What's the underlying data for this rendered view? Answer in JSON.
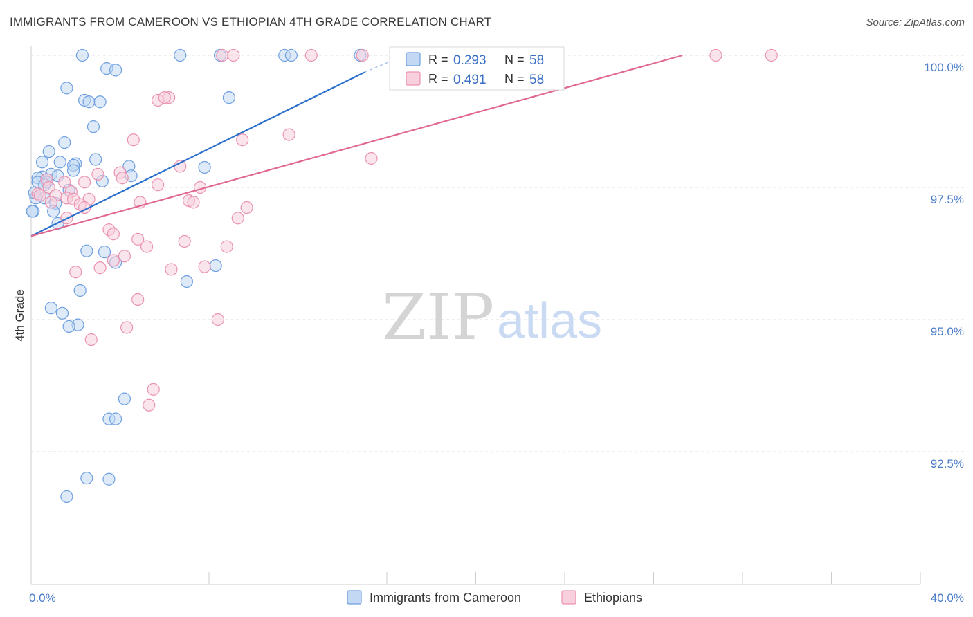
{
  "title": "IMMIGRANTS FROM CAMEROON VS ETHIOPIAN 4TH GRADE CORRELATION CHART",
  "source": "Source: ZipAtlas.com",
  "watermark": {
    "zip": "ZIP",
    "atlas": "atlas"
  },
  "colors": {
    "blue_fill": "#c3d8f3",
    "blue_stroke": "#6e9fe0",
    "blue_line": "#2a6fcc",
    "pink_fill": "#f8cfdc",
    "pink_stroke": "#ea93b0",
    "pink_line": "#e06890",
    "tick_text": "#4a7cc9",
    "grid": "#dddddd"
  },
  "legend": {
    "rows": [
      {
        "r_label": "R =",
        "r_value": "0.293",
        "n_label": "N =",
        "n_value": "58"
      },
      {
        "r_label": "R =",
        "r_value": "0.491",
        "n_label": "N =",
        "n_value": "58"
      }
    ]
  },
  "chart_data": {
    "type": "scatter",
    "title": "IMMIGRANTS FROM CAMEROON VS ETHIOPIAN 4TH GRADE CORRELATION CHART",
    "xlabel": "",
    "ylabel": "4th Grade",
    "xlim": [
      0.0,
      40.0
    ],
    "ylim": [
      90.8,
      100.5
    ],
    "x_tick_labels": [
      {
        "value": 0.0,
        "label": "0.0%"
      },
      {
        "value": 40.0,
        "label": "40.0%"
      }
    ],
    "y_tick_labels": [
      {
        "value": 100.0,
        "label": "100.0%"
      },
      {
        "value": 97.5,
        "label": "97.5%"
      },
      {
        "value": 95.0,
        "label": "95.0%"
      },
      {
        "value": 92.5,
        "label": "92.5%"
      }
    ],
    "grid": true,
    "legend_position": "top-center",
    "series": [
      {
        "name": "Immigrants from Cameroon",
        "color": "#6e9fe0",
        "points": [
          [
            2.3,
            100.0
          ],
          [
            6.7,
            100.0
          ],
          [
            8.5,
            100.0
          ],
          [
            11.4,
            100.0
          ],
          [
            11.7,
            100.0
          ],
          [
            14.8,
            100.0
          ],
          [
            3.4,
            99.75
          ],
          [
            3.8,
            99.72
          ],
          [
            1.6,
            99.38
          ],
          [
            2.4,
            99.15
          ],
          [
            2.6,
            99.12
          ],
          [
            3.1,
            99.12
          ],
          [
            8.9,
            99.2
          ],
          [
            2.8,
            98.65
          ],
          [
            1.5,
            98.35
          ],
          [
            0.8,
            98.18
          ],
          [
            0.5,
            97.98
          ],
          [
            1.3,
            97.98
          ],
          [
            2.0,
            97.95
          ],
          [
            1.9,
            97.92
          ],
          [
            2.9,
            98.03
          ],
          [
            4.4,
            97.9
          ],
          [
            7.8,
            97.88
          ],
          [
            0.9,
            97.75
          ],
          [
            1.9,
            97.82
          ],
          [
            0.5,
            97.7
          ],
          [
            0.3,
            97.68
          ],
          [
            0.7,
            97.6
          ],
          [
            1.2,
            97.72
          ],
          [
            3.2,
            97.62
          ],
          [
            4.5,
            97.72
          ],
          [
            0.3,
            97.6
          ],
          [
            0.6,
            97.3
          ],
          [
            0.2,
            97.3
          ],
          [
            1.1,
            97.2
          ],
          [
            0.1,
            97.05
          ],
          [
            1.0,
            97.05
          ],
          [
            1.7,
            97.45
          ],
          [
            1.2,
            96.82
          ],
          [
            2.5,
            96.3
          ],
          [
            3.3,
            96.28
          ],
          [
            3.8,
            96.08
          ],
          [
            7.0,
            95.72
          ],
          [
            8.3,
            96.02
          ],
          [
            2.2,
            95.55
          ],
          [
            0.9,
            95.22
          ],
          [
            1.4,
            95.12
          ],
          [
            2.1,
            94.9
          ],
          [
            1.7,
            94.87
          ],
          [
            4.2,
            93.5
          ],
          [
            3.5,
            93.12
          ],
          [
            3.8,
            93.12
          ],
          [
            2.5,
            92.0
          ],
          [
            3.5,
            91.98
          ],
          [
            1.6,
            91.65
          ],
          [
            0.05,
            97.05
          ],
          [
            0.15,
            97.4
          ],
          [
            0.6,
            97.55
          ]
        ],
        "trend": {
          "x1": 0.0,
          "y1": 96.58,
          "x2": 15.0,
          "y2": 99.68,
          "dash_x2": 16.8,
          "dash_y2": 100.0
        }
      },
      {
        "name": "Ethiopians",
        "color": "#ea93b0",
        "points": [
          [
            8.6,
            100.0
          ],
          [
            9.1,
            100.0
          ],
          [
            12.6,
            100.0
          ],
          [
            14.9,
            100.0
          ],
          [
            20.7,
            100.0
          ],
          [
            30.8,
            100.0
          ],
          [
            33.3,
            100.0
          ],
          [
            6.2,
            99.2
          ],
          [
            5.7,
            99.15
          ],
          [
            6.0,
            99.2
          ],
          [
            4.6,
            98.4
          ],
          [
            9.5,
            98.4
          ],
          [
            11.6,
            98.5
          ],
          [
            15.3,
            98.05
          ],
          [
            1.5,
            97.6
          ],
          [
            3.0,
            97.75
          ],
          [
            4.0,
            97.78
          ],
          [
            4.1,
            97.68
          ],
          [
            5.7,
            97.55
          ],
          [
            6.7,
            97.9
          ],
          [
            7.6,
            97.5
          ],
          [
            0.7,
            97.65
          ],
          [
            0.8,
            97.5
          ],
          [
            0.3,
            97.38
          ],
          [
            0.4,
            97.35
          ],
          [
            1.1,
            97.35
          ],
          [
            1.8,
            97.42
          ],
          [
            2.4,
            97.6
          ],
          [
            1.6,
            97.3
          ],
          [
            2.6,
            97.28
          ],
          [
            1.9,
            97.28
          ],
          [
            4.9,
            97.22
          ],
          [
            7.1,
            97.25
          ],
          [
            7.3,
            97.22
          ],
          [
            9.7,
            97.12
          ],
          [
            0.9,
            97.22
          ],
          [
            2.2,
            97.18
          ],
          [
            2.4,
            97.12
          ],
          [
            1.6,
            96.92
          ],
          [
            3.5,
            96.7
          ],
          [
            3.7,
            96.62
          ],
          [
            4.8,
            96.52
          ],
          [
            5.2,
            96.38
          ],
          [
            6.9,
            96.48
          ],
          [
            9.3,
            96.92
          ],
          [
            8.8,
            96.38
          ],
          [
            4.2,
            96.2
          ],
          [
            3.7,
            96.12
          ],
          [
            3.1,
            95.98
          ],
          [
            2.0,
            95.9
          ],
          [
            6.3,
            95.95
          ],
          [
            7.8,
            96.0
          ],
          [
            4.8,
            95.38
          ],
          [
            8.4,
            95.0
          ],
          [
            4.3,
            94.85
          ],
          [
            2.7,
            94.62
          ],
          [
            5.5,
            93.68
          ],
          [
            5.3,
            93.38
          ]
        ],
        "trend": {
          "x1": 0.0,
          "y1": 96.58,
          "x2": 29.3,
          "y2": 100.0
        }
      }
    ]
  }
}
